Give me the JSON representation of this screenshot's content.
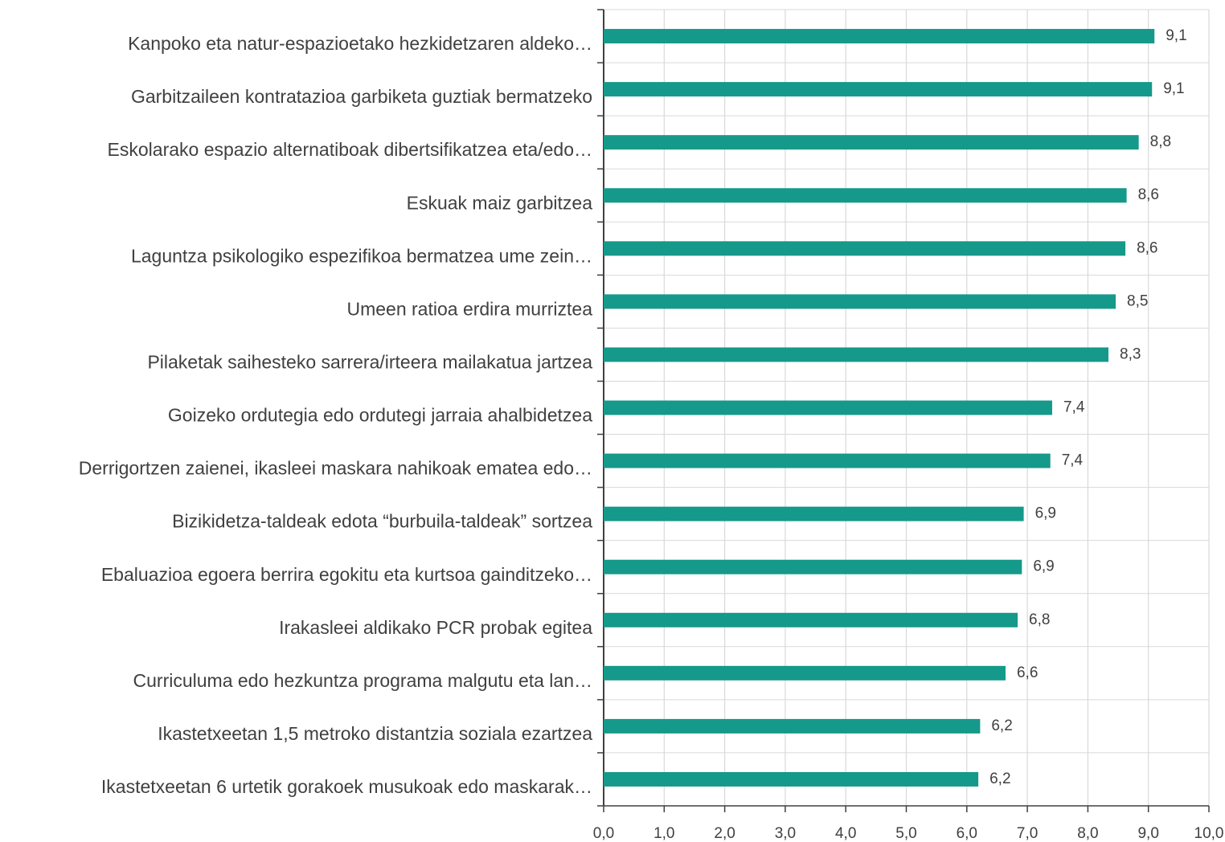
{
  "chart_data": {
    "type": "hbar",
    "categories": [
      "Kanpoko eta natur-espazioetako hezkidetzaren aldeko…",
      "Garbitzaileen kontratazioa garbiketa guztiak bermatzeko",
      "Eskolarako espazio alternatiboak dibertsifikatzea eta/edo…",
      "Eskuak maiz garbitzea",
      "Laguntza psikologiko espezifikoa bermatzea ume zein…",
      "Umeen ratioa erdira murriztea",
      "Pilaketak saihesteko sarrera/irteera mailakatua jartzea",
      "Goizeko ordutegia edo ordutegi jarraia ahalbidetzea",
      "Derrigortzen zaienei, ikasleei maskara nahikoak ematea edo…",
      "Bizikidetza-taldeak edota “burbuila-taldeak” sortzea",
      "Ebaluazioa egoera berrira egokitu eta kurtsoa gainditzeko…",
      "Irakasleei aldikako PCR probak egitea",
      "Curriculuma edo hezkuntza programa malgutu eta lan…",
      "Ikastetxeetan 1,5 metroko distantzia soziala ezartzea",
      "Ikastetxeetan 6 urtetik gorakoek musukoak edo maskarak…"
    ],
    "values": [
      9.1,
      9.06,
      8.84,
      8.64,
      8.62,
      8.46,
      8.34,
      7.41,
      7.38,
      6.94,
      6.91,
      6.84,
      6.64,
      6.22,
      6.19
    ],
    "value_labels": [
      "9,1",
      "9,1",
      "8,8",
      "8,6",
      "8,6",
      "8,5",
      "8,3",
      "7,4",
      "7,4",
      "6,9",
      "6,9",
      "6,8",
      "6,6",
      "6,2",
      "6,2"
    ],
    "color": "#15998a",
    "xlim": [
      0,
      10
    ],
    "xticks": [
      {
        "value": 0,
        "label": "0,0"
      },
      {
        "value": 1,
        "label": "1,0"
      },
      {
        "value": 2,
        "label": "2,0"
      },
      {
        "value": 3,
        "label": "3,0"
      },
      {
        "value": 4,
        "label": "4,0"
      },
      {
        "value": 5,
        "label": "5,0"
      },
      {
        "value": 6,
        "label": "6,0"
      },
      {
        "value": 7,
        "label": "7,0"
      },
      {
        "value": 8,
        "label": "8,0"
      },
      {
        "value": 9,
        "label": "9,0"
      },
      {
        "value": 10,
        "label": "10,0"
      }
    ],
    "grid": true
  }
}
